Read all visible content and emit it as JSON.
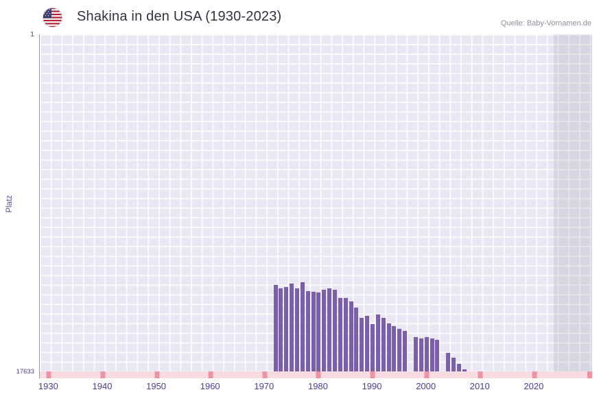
{
  "header": {
    "title": "Shakina in den USA (1930-2023)",
    "source": "Quelle: Baby-Vornamen.de"
  },
  "axes": {
    "y_title": "Platz",
    "y_top": "1",
    "y_bottom": "17633"
  },
  "colors": {
    "bar": "#7b5fa8",
    "plot_bg": "#e9e7f3",
    "grid": "#ffffff",
    "strip": "#f9dce2",
    "strip_tick": "#ee93a4",
    "axis_text": "#4a3d96",
    "title_text": "#33323e",
    "source_text": "#8f8f9b",
    "flag_red": "#b22234",
    "flag_blue": "#3c3b6e"
  },
  "chart_data": {
    "type": "bar",
    "title": "Shakina in den USA (1930-2023)",
    "xlabel": "",
    "ylabel": "Platz",
    "ylim": [
      1,
      17633
    ],
    "y_inverted": true,
    "x_domain": [
      1928.3,
      2030.7
    ],
    "x_tick_labels": [
      1930,
      1940,
      1950,
      1960,
      1970,
      1980,
      1990,
      2000,
      2010,
      2020
    ],
    "future_band_start": 2023.6,
    "grid": true,
    "legend": false,
    "points": [
      {
        "year": 1972,
        "rank": 13100
      },
      {
        "year": 1973,
        "rank": 13300
      },
      {
        "year": 1974,
        "rank": 13200
      },
      {
        "year": 1975,
        "rank": 13050
      },
      {
        "year": 1976,
        "rank": 13270
      },
      {
        "year": 1977,
        "rank": 12950
      },
      {
        "year": 1978,
        "rank": 13440
      },
      {
        "year": 1979,
        "rank": 13470
      },
      {
        "year": 1980,
        "rank": 13510
      },
      {
        "year": 1981,
        "rank": 13370
      },
      {
        "year": 1982,
        "rank": 13300
      },
      {
        "year": 1983,
        "rank": 13370
      },
      {
        "year": 1984,
        "rank": 13790
      },
      {
        "year": 1985,
        "rank": 13790
      },
      {
        "year": 1986,
        "rank": 13970
      },
      {
        "year": 1987,
        "rank": 14290
      },
      {
        "year": 1988,
        "rank": 14820
      },
      {
        "year": 1989,
        "rank": 14720
      },
      {
        "year": 1990,
        "rank": 15140
      },
      {
        "year": 1991,
        "rank": 14650
      },
      {
        "year": 1992,
        "rank": 14820
      },
      {
        "year": 1993,
        "rank": 15110
      },
      {
        "year": 1994,
        "rank": 15250
      },
      {
        "year": 1995,
        "rank": 15390
      },
      {
        "year": 1996,
        "rank": 15530
      },
      {
        "year": 1998,
        "rank": 15850
      },
      {
        "year": 1999,
        "rank": 15920
      },
      {
        "year": 2000,
        "rank": 15850
      },
      {
        "year": 2001,
        "rank": 15920
      },
      {
        "year": 2002,
        "rank": 15990
      },
      {
        "year": 2004,
        "rank": 16650
      },
      {
        "year": 2005,
        "rank": 16900
      },
      {
        "year": 2006,
        "rank": 17250
      },
      {
        "year": 2007,
        "rank": 17520
      }
    ]
  }
}
